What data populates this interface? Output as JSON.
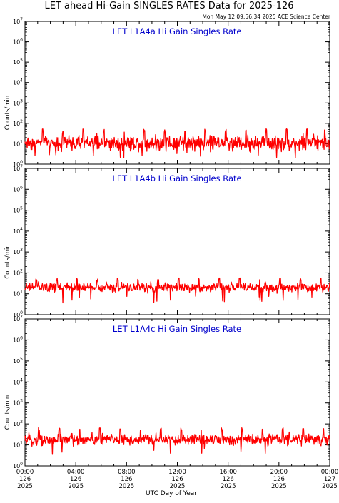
{
  "header": {
    "title": "LET ahead Hi-Gain SINGLES RATES Data for 2025-126",
    "timestamp": "Mon May 12 09:56:34 2025 ACE Science Center"
  },
  "colors": {
    "series": "#ff0000",
    "panel_title": "#0000cc",
    "axes": "#000000",
    "background": "#ffffff"
  },
  "chart_data": [
    {
      "type": "line",
      "title": "LET L1A4a Hi Gain Singles Rate",
      "ylabel": "Counts/min",
      "yscale": "log",
      "ylim": [
        1,
        10000000
      ],
      "y_tick_labels": [
        "10^0",
        "10^1",
        "10^2",
        "10^3",
        "10^4",
        "10^5",
        "10^6",
        "10^7"
      ],
      "xlim": [
        0,
        24
      ],
      "series": [
        {
          "baseline": 11,
          "noise_factor": 1.7,
          "spike_hours": [
            1.4,
            3.0,
            4.6,
            6.2,
            7.8,
            9.4,
            11.0,
            12.6,
            14.2,
            15.8,
            17.4,
            19.0,
            20.6,
            22.2,
            23.6
          ],
          "spike_value": 45
        }
      ]
    },
    {
      "type": "line",
      "title": "LET L1A4b Hi Gain Singles Rate",
      "ylabel": "Counts/min",
      "yscale": "log",
      "ylim": [
        1,
        10000000
      ],
      "y_tick_labels": [
        "10^0",
        "10^1",
        "10^2",
        "10^3",
        "10^4",
        "10^5",
        "10^6",
        "10^7"
      ],
      "xlim": [
        0,
        24
      ],
      "series": [
        {
          "baseline": 20,
          "noise_factor": 1.35,
          "spike_hours": [
            0.9,
            2.5,
            4.1,
            5.7,
            7.3,
            8.9,
            10.5,
            12.1,
            13.7,
            15.3,
            16.9,
            18.5,
            20.1,
            21.7,
            23.3
          ],
          "spike_value": 50
        }
      ]
    },
    {
      "type": "line",
      "title": "LET L1A4c Hi Gain Singles Rate",
      "ylabel": "Counts/min",
      "yscale": "log",
      "ylim": [
        1,
        10000000
      ],
      "y_tick_labels": [
        "10^0",
        "10^1",
        "10^2",
        "10^3",
        "10^4",
        "10^5",
        "10^6",
        "10^7"
      ],
      "xlim": [
        0,
        24
      ],
      "series": [
        {
          "baseline": 18,
          "noise_factor": 1.45,
          "spike_hours": [
            1.1,
            2.7,
            4.3,
            5.9,
            7.5,
            9.1,
            10.7,
            12.3,
            13.9,
            15.5,
            17.1,
            18.7,
            20.3,
            21.9,
            23.5
          ],
          "spike_value": 55
        }
      ]
    }
  ],
  "x_axis": {
    "xlabel": "UTC Day of Year",
    "ticks": [
      {
        "value": 0,
        "time": "00:00",
        "doy": "126",
        "year": "2025"
      },
      {
        "value": 4,
        "time": "04:00",
        "doy": "126",
        "year": "2025"
      },
      {
        "value": 8,
        "time": "08:00",
        "doy": "126",
        "year": "2025"
      },
      {
        "value": 12,
        "time": "12:00",
        "doy": "126",
        "year": "2025"
      },
      {
        "value": 16,
        "time": "16:00",
        "doy": "126",
        "year": "2025"
      },
      {
        "value": 20,
        "time": "20:00",
        "doy": "126",
        "year": "2025"
      },
      {
        "value": 24,
        "time": "00:00",
        "doy": "127",
        "year": "2025"
      }
    ]
  }
}
